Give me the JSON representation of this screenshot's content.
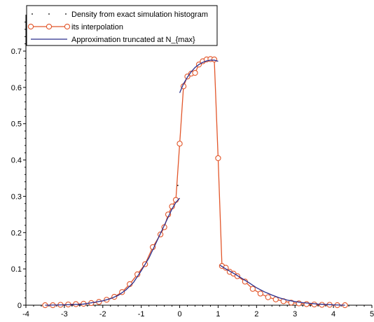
{
  "chart_data": {
    "type": "line",
    "xlim": [
      -4,
      5
    ],
    "ylim": [
      0,
      0.7
    ],
    "x_ticks": [
      -4,
      -3,
      -2,
      -1,
      0,
      1,
      2,
      3,
      4,
      5
    ],
    "y_ticks": [
      0,
      0.1,
      0.2,
      0.3,
      0.4,
      0.5,
      0.6,
      0.7
    ],
    "x_tick_labels": [
      "-4",
      "-3",
      "-2",
      "-1",
      "0",
      "1",
      "2",
      "3",
      "4",
      "5"
    ],
    "y_tick_labels": [
      "0",
      "0.1",
      "0.2",
      "0.3",
      "0.4",
      "0.5",
      "0.6",
      "0.7"
    ],
    "grid": false,
    "legend_position": "top-left",
    "series": [
      {
        "name": "Density from exact simulation histogram",
        "style": "dots",
        "color": "#000000",
        "x": [
          -3.5,
          -3.3,
          -3.1,
          -2.9,
          -2.7,
          -2.5,
          -2.3,
          -2.1,
          -1.9,
          -1.7,
          -1.5,
          -1.3,
          -1.1,
          -0.9,
          -0.7,
          -0.5,
          -0.4,
          -0.3,
          -0.2,
          -0.1,
          -0.05,
          0.0,
          0.1,
          0.2,
          0.3,
          0.4,
          0.5,
          0.6,
          0.7,
          0.8,
          0.9,
          1.0,
          1.1,
          1.2,
          1.3,
          1.4,
          1.5,
          1.7,
          1.9,
          2.1,
          2.3,
          2.5,
          2.7,
          2.9,
          3.1,
          3.3,
          3.5,
          3.7,
          3.9,
          4.1,
          4.3
        ],
        "y": [
          0.0,
          0.0,
          0.001,
          0.002,
          0.003,
          0.005,
          0.007,
          0.011,
          0.016,
          0.023,
          0.035,
          0.055,
          0.082,
          0.11,
          0.16,
          0.2,
          0.215,
          0.25,
          0.275,
          0.29,
          0.33,
          0.44,
          0.6,
          0.63,
          0.64,
          0.645,
          0.665,
          0.675,
          0.675,
          0.675,
          0.675,
          0.405,
          0.11,
          0.1,
          0.09,
          0.085,
          0.08,
          0.065,
          0.045,
          0.032,
          0.023,
          0.015,
          0.01,
          0.007,
          0.005,
          0.003,
          0.002,
          0.002,
          0.001,
          0.001,
          0.0
        ]
      },
      {
        "name": "its interpolation",
        "style": "line-markers",
        "color": "#e2562a",
        "x": [
          -3.5,
          -3.3,
          -3.1,
          -2.9,
          -2.7,
          -2.5,
          -2.3,
          -2.1,
          -1.9,
          -1.7,
          -1.5,
          -1.3,
          -1.1,
          -0.9,
          -0.7,
          -0.5,
          -0.4,
          -0.3,
          -0.2,
          -0.1,
          0.0,
          0.1,
          0.2,
          0.3,
          0.4,
          0.5,
          0.6,
          0.7,
          0.8,
          0.9,
          1.0,
          1.1,
          1.2,
          1.3,
          1.4,
          1.5,
          1.7,
          1.9,
          2.1,
          2.3,
          2.5,
          2.7,
          2.9,
          3.1,
          3.3,
          3.5,
          3.7,
          3.9,
          4.1,
          4.3
        ],
        "y": [
          0.0,
          0.0,
          0.001,
          0.002,
          0.003,
          0.004,
          0.006,
          0.009,
          0.015,
          0.023,
          0.036,
          0.058,
          0.085,
          0.113,
          0.16,
          0.195,
          0.215,
          0.25,
          0.272,
          0.29,
          0.445,
          0.603,
          0.63,
          0.638,
          0.64,
          0.663,
          0.672,
          0.677,
          0.678,
          0.677,
          0.405,
          0.108,
          0.103,
          0.092,
          0.087,
          0.08,
          0.065,
          0.045,
          0.032,
          0.022,
          0.016,
          0.011,
          0.007,
          0.005,
          0.003,
          0.002,
          0.001,
          0.001,
          0.0,
          0.0
        ]
      },
      {
        "name": "Approximation truncated at N_{max}",
        "style": "line",
        "color": "#2a2e8c",
        "x": [
          -3.5,
          -3.0,
          -2.5,
          -2.0,
          -1.8,
          -1.6,
          -1.4,
          -1.2,
          -1.0,
          -0.8,
          -0.6,
          -0.4,
          -0.2,
          -0.1,
          0.0,
          null,
          0.0,
          0.1,
          0.2,
          0.3,
          0.4,
          0.5,
          0.6,
          0.7,
          0.8,
          0.9,
          1.0,
          null,
          1.05,
          1.2,
          1.4,
          1.6,
          1.8,
          2.0,
          2.2,
          2.4,
          2.6,
          2.8,
          3.0,
          3.2,
          3.4,
          3.6,
          3.8,
          4.0,
          4.3
        ],
        "y": [
          0.0,
          0.001,
          0.003,
          0.012,
          0.018,
          0.027,
          0.042,
          0.063,
          0.095,
          0.13,
          0.175,
          0.22,
          0.265,
          0.283,
          0.295,
          null,
          0.585,
          0.61,
          0.628,
          0.643,
          0.655,
          0.663,
          0.669,
          0.673,
          0.675,
          0.675,
          0.672,
          null,
          0.11,
          0.1,
          0.088,
          0.075,
          0.062,
          0.048,
          0.037,
          0.028,
          0.02,
          0.014,
          0.01,
          0.007,
          0.005,
          0.003,
          0.002,
          0.001,
          0.0
        ]
      }
    ]
  }
}
